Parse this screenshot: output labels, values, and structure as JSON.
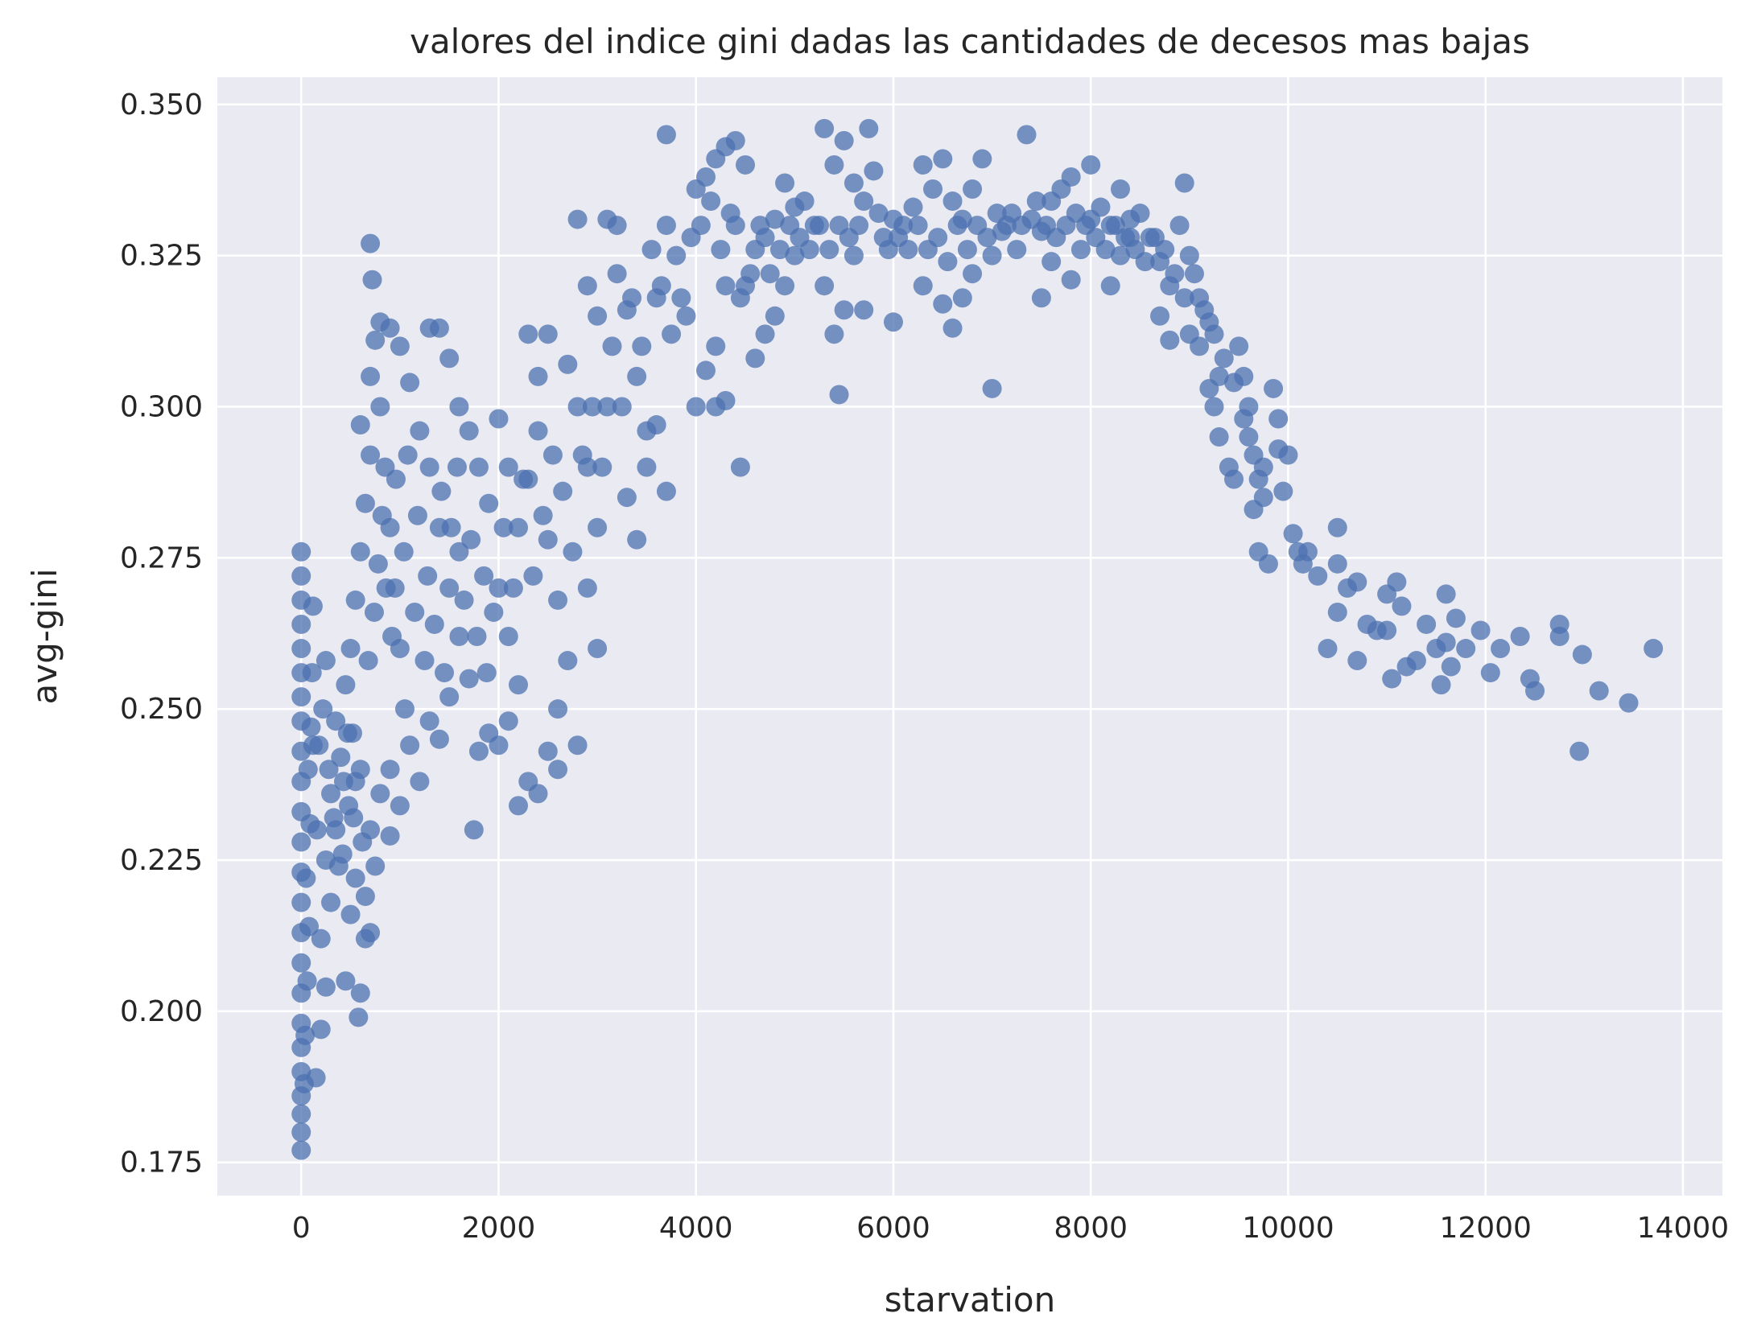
{
  "chart_data": {
    "type": "scatter",
    "title": "valores del indice gini dadas las cantidades de decesos mas bajas",
    "xlabel": "starvation",
    "ylabel": "avg-gini",
    "xlim": [
      -850,
      14400
    ],
    "ylim": [
      0.1695,
      0.3545
    ],
    "xticks": [
      0,
      2000,
      4000,
      6000,
      8000,
      10000,
      12000,
      14000
    ],
    "xtick_labels": [
      "0",
      "2000",
      "4000",
      "6000",
      "8000",
      "10000",
      "12000",
      "14000"
    ],
    "yticks": [
      0.175,
      0.2,
      0.225,
      0.25,
      0.275,
      0.3,
      0.325,
      0.35
    ],
    "ytick_labels": [
      "0.175",
      "0.200",
      "0.225",
      "0.250",
      "0.275",
      "0.300",
      "0.325",
      "0.350"
    ],
    "grid": true,
    "background": "#eaeaf2",
    "point_color": "#4c72b0",
    "points": [
      [
        0,
        0.177
      ],
      [
        0,
        0.18
      ],
      [
        0,
        0.183
      ],
      [
        0,
        0.186
      ],
      [
        0,
        0.19
      ],
      [
        0,
        0.194
      ],
      [
        0,
        0.198
      ],
      [
        0,
        0.203
      ],
      [
        0,
        0.208
      ],
      [
        0,
        0.213
      ],
      [
        0,
        0.218
      ],
      [
        0,
        0.223
      ],
      [
        0,
        0.228
      ],
      [
        0,
        0.233
      ],
      [
        0,
        0.238
      ],
      [
        0,
        0.243
      ],
      [
        0,
        0.248
      ],
      [
        0,
        0.252
      ],
      [
        0,
        0.256
      ],
      [
        0,
        0.26
      ],
      [
        0,
        0.264
      ],
      [
        0,
        0.268
      ],
      [
        0,
        0.272
      ],
      [
        0,
        0.276
      ],
      [
        30,
        0.188
      ],
      [
        40,
        0.196
      ],
      [
        60,
        0.205
      ],
      [
        80,
        0.214
      ],
      [
        50,
        0.222
      ],
      [
        90,
        0.231
      ],
      [
        70,
        0.24
      ],
      [
        100,
        0.247
      ],
      [
        120,
        0.267
      ],
      [
        110,
        0.256
      ],
      [
        150,
        0.189
      ],
      [
        200,
        0.197
      ],
      [
        250,
        0.204
      ],
      [
        200,
        0.212
      ],
      [
        300,
        0.218
      ],
      [
        250,
        0.225
      ],
      [
        350,
        0.23
      ],
      [
        300,
        0.236
      ],
      [
        400,
        0.242
      ],
      [
        350,
        0.248
      ],
      [
        450,
        0.254
      ],
      [
        250,
        0.258
      ],
      [
        180,
        0.244
      ],
      [
        420,
        0.226
      ],
      [
        500,
        0.216
      ],
      [
        550,
        0.222
      ],
      [
        480,
        0.234
      ],
      [
        600,
        0.24
      ],
      [
        520,
        0.246
      ],
      [
        450,
        0.205
      ],
      [
        580,
        0.199
      ],
      [
        600,
        0.203
      ],
      [
        700,
        0.213
      ],
      [
        650,
        0.219
      ],
      [
        750,
        0.224
      ],
      [
        700,
        0.23
      ],
      [
        800,
        0.236
      ],
      [
        650,
        0.212
      ],
      [
        550,
        0.238
      ],
      [
        500,
        0.26
      ],
      [
        550,
        0.268
      ],
      [
        600,
        0.276
      ],
      [
        650,
        0.284
      ],
      [
        700,
        0.292
      ],
      [
        600,
        0.297
      ],
      [
        700,
        0.305
      ],
      [
        750,
        0.311
      ],
      [
        800,
        0.314
      ],
      [
        900,
        0.313
      ],
      [
        700,
        0.327
      ],
      [
        720,
        0.321
      ],
      [
        800,
        0.3
      ],
      [
        850,
        0.29
      ],
      [
        900,
        0.28
      ],
      [
        950,
        0.27
      ],
      [
        1000,
        0.26
      ],
      [
        1050,
        0.25
      ],
      [
        900,
        0.24
      ],
      [
        1000,
        0.234
      ],
      [
        1100,
        0.244
      ],
      [
        1200,
        0.238
      ],
      [
        900,
        0.229
      ],
      [
        1000,
        0.31
      ],
      [
        1100,
        0.304
      ],
      [
        1200,
        0.296
      ],
      [
        1300,
        0.313
      ],
      [
        1400,
        0.313
      ],
      [
        1500,
        0.308
      ],
      [
        1600,
        0.3
      ],
      [
        1300,
        0.29
      ],
      [
        1400,
        0.28
      ],
      [
        1500,
        0.27
      ],
      [
        1600,
        0.262
      ],
      [
        1700,
        0.255
      ],
      [
        1300,
        0.248
      ],
      [
        1400,
        0.245
      ],
      [
        1500,
        0.252
      ],
      [
        1750,
        0.23
      ],
      [
        1800,
        0.243
      ],
      [
        1900,
        0.246
      ],
      [
        1700,
        0.296
      ],
      [
        1800,
        0.29
      ],
      [
        1900,
        0.284
      ],
      [
        1600,
        0.276
      ],
      [
        2000,
        0.298
      ],
      [
        2100,
        0.29
      ],
      [
        2200,
        0.28
      ],
      [
        2000,
        0.27
      ],
      [
        2100,
        0.262
      ],
      [
        2200,
        0.254
      ],
      [
        2300,
        0.312
      ],
      [
        2400,
        0.305
      ],
      [
        2500,
        0.312
      ],
      [
        2400,
        0.296
      ],
      [
        2300,
        0.288
      ],
      [
        2500,
        0.278
      ],
      [
        2600,
        0.268
      ],
      [
        2700,
        0.258
      ],
      [
        2600,
        0.25
      ],
      [
        2200,
        0.234
      ],
      [
        2300,
        0.238
      ],
      [
        2400,
        0.236
      ],
      [
        2500,
        0.243
      ],
      [
        2600,
        0.24
      ],
      [
        2800,
        0.244
      ],
      [
        2000,
        0.244
      ],
      [
        2100,
        0.248
      ],
      [
        2700,
        0.307
      ],
      [
        2800,
        0.331
      ],
      [
        2900,
        0.32
      ],
      [
        3000,
        0.315
      ],
      [
        2800,
        0.3
      ],
      [
        2900,
        0.29
      ],
      [
        3000,
        0.28
      ],
      [
        2900,
        0.27
      ],
      [
        3000,
        0.26
      ],
      [
        3100,
        0.3
      ],
      [
        3200,
        0.322
      ],
      [
        3300,
        0.316
      ],
      [
        3100,
        0.331
      ],
      [
        3200,
        0.33
      ],
      [
        3400,
        0.305
      ],
      [
        3500,
        0.296
      ],
      [
        3600,
        0.297
      ],
      [
        3400,
        0.278
      ],
      [
        3300,
        0.285
      ],
      [
        3500,
        0.29
      ],
      [
        3700,
        0.286
      ],
      [
        3700,
        0.345
      ],
      [
        3700,
        0.33
      ],
      [
        3600,
        0.318
      ],
      [
        3800,
        0.325
      ],
      [
        3900,
        0.315
      ],
      [
        4000,
        0.336
      ],
      [
        4100,
        0.338
      ],
      [
        4200,
        0.341
      ],
      [
        4300,
        0.343
      ],
      [
        4400,
        0.344
      ],
      [
        4500,
        0.34
      ],
      [
        4400,
        0.33
      ],
      [
        4300,
        0.32
      ],
      [
        4200,
        0.31
      ],
      [
        4100,
        0.306
      ],
      [
        4000,
        0.3
      ],
      [
        4300,
        0.301
      ],
      [
        4200,
        0.3
      ],
      [
        4450,
        0.29
      ],
      [
        4500,
        0.32
      ],
      [
        4600,
        0.326
      ],
      [
        4700,
        0.328
      ],
      [
        4800,
        0.331
      ],
      [
        4900,
        0.337
      ],
      [
        5000,
        0.333
      ],
      [
        4800,
        0.315
      ],
      [
        4900,
        0.32
      ],
      [
        5000,
        0.325
      ],
      [
        4700,
        0.312
      ],
      [
        4600,
        0.308
      ],
      [
        5100,
        0.334
      ],
      [
        5200,
        0.33
      ],
      [
        5300,
        0.346
      ],
      [
        5400,
        0.34
      ],
      [
        5500,
        0.344
      ],
      [
        5600,
        0.337
      ],
      [
        5700,
        0.334
      ],
      [
        5750,
        0.346
      ],
      [
        5800,
        0.339
      ],
      [
        5600,
        0.325
      ],
      [
        5500,
        0.316
      ],
      [
        5400,
        0.312
      ],
      [
        5300,
        0.32
      ],
      [
        5450,
        0.302
      ],
      [
        5700,
        0.316
      ],
      [
        5900,
        0.328
      ],
      [
        6000,
        0.331
      ],
      [
        6000,
        0.314
      ],
      [
        6100,
        0.33
      ],
      [
        6200,
        0.333
      ],
      [
        6300,
        0.34
      ],
      [
        6400,
        0.336
      ],
      [
        6500,
        0.341
      ],
      [
        6600,
        0.334
      ],
      [
        6700,
        0.331
      ],
      [
        6800,
        0.336
      ],
      [
        6900,
        0.341
      ],
      [
        6300,
        0.32
      ],
      [
        6500,
        0.317
      ],
      [
        6700,
        0.318
      ],
      [
        6600,
        0.313
      ],
      [
        6800,
        0.322
      ],
      [
        7000,
        0.303
      ],
      [
        7000,
        0.325
      ],
      [
        7100,
        0.329
      ],
      [
        7200,
        0.332
      ],
      [
        7300,
        0.33
      ],
      [
        7350,
        0.345
      ],
      [
        7400,
        0.331
      ],
      [
        7500,
        0.329
      ],
      [
        7600,
        0.334
      ],
      [
        7700,
        0.336
      ],
      [
        7800,
        0.338
      ],
      [
        7500,
        0.318
      ],
      [
        7600,
        0.324
      ],
      [
        7800,
        0.321
      ],
      [
        7900,
        0.326
      ],
      [
        8000,
        0.331
      ],
      [
        8000,
        0.34
      ],
      [
        8100,
        0.333
      ],
      [
        8200,
        0.33
      ],
      [
        8300,
        0.336
      ],
      [
        8400,
        0.331
      ],
      [
        8200,
        0.32
      ],
      [
        8300,
        0.325
      ],
      [
        8400,
        0.328
      ],
      [
        8500,
        0.332
      ],
      [
        8600,
        0.328
      ],
      [
        8700,
        0.324
      ],
      [
        8800,
        0.32
      ],
      [
        8900,
        0.33
      ],
      [
        8950,
        0.337
      ],
      [
        9000,
        0.325
      ],
      [
        9100,
        0.318
      ],
      [
        8800,
        0.311
      ],
      [
        8700,
        0.315
      ],
      [
        9000,
        0.312
      ],
      [
        9100,
        0.31
      ],
      [
        9200,
        0.314
      ],
      [
        9300,
        0.305
      ],
      [
        9200,
        0.303
      ],
      [
        9250,
        0.3
      ],
      [
        9300,
        0.295
      ],
      [
        9400,
        0.29
      ],
      [
        9450,
        0.288
      ],
      [
        9500,
        0.31
      ],
      [
        9550,
        0.305
      ],
      [
        9600,
        0.3
      ],
      [
        9600,
        0.295
      ],
      [
        9700,
        0.288
      ],
      [
        9750,
        0.285
      ],
      [
        9650,
        0.283
      ],
      [
        9700,
        0.276
      ],
      [
        9800,
        0.274
      ],
      [
        9850,
        0.303
      ],
      [
        9900,
        0.298
      ],
      [
        9900,
        0.293
      ],
      [
        10000,
        0.292
      ],
      [
        9950,
        0.286
      ],
      [
        10050,
        0.279
      ],
      [
        10100,
        0.276
      ],
      [
        10150,
        0.274
      ],
      [
        10200,
        0.276
      ],
      [
        10300,
        0.272
      ],
      [
        10400,
        0.26
      ],
      [
        10500,
        0.266
      ],
      [
        10500,
        0.274
      ],
      [
        10500,
        0.28
      ],
      [
        10600,
        0.27
      ],
      [
        10700,
        0.258
      ],
      [
        10700,
        0.271
      ],
      [
        10800,
        0.264
      ],
      [
        10900,
        0.263
      ],
      [
        11000,
        0.263
      ],
      [
        11000,
        0.269
      ],
      [
        11050,
        0.255
      ],
      [
        11100,
        0.271
      ],
      [
        11150,
        0.267
      ],
      [
        11200,
        0.257
      ],
      [
        11300,
        0.258
      ],
      [
        11400,
        0.264
      ],
      [
        11500,
        0.26
      ],
      [
        11550,
        0.254
      ],
      [
        11600,
        0.269
      ],
      [
        11600,
        0.261
      ],
      [
        11650,
        0.257
      ],
      [
        11700,
        0.265
      ],
      [
        11800,
        0.26
      ],
      [
        11950,
        0.263
      ],
      [
        12050,
        0.256
      ],
      [
        12150,
        0.26
      ],
      [
        12350,
        0.262
      ],
      [
        12450,
        0.255
      ],
      [
        12500,
        0.253
      ],
      [
        12750,
        0.264
      ],
      [
        12750,
        0.262
      ],
      [
        12950,
        0.243
      ],
      [
        12980,
        0.259
      ],
      [
        13150,
        0.253
      ],
      [
        13450,
        0.251
      ],
      [
        13700,
        0.26
      ],
      [
        120,
        0.244
      ],
      [
        160,
        0.23
      ],
      [
        220,
        0.25
      ],
      [
        280,
        0.24
      ],
      [
        330,
        0.232
      ],
      [
        380,
        0.224
      ],
      [
        430,
        0.238
      ],
      [
        470,
        0.246
      ],
      [
        530,
        0.232
      ],
      [
        620,
        0.228
      ],
      [
        680,
        0.258
      ],
      [
        740,
        0.266
      ],
      [
        780,
        0.274
      ],
      [
        820,
        0.282
      ],
      [
        860,
        0.27
      ],
      [
        920,
        0.262
      ],
      [
        960,
        0.288
      ],
      [
        1040,
        0.276
      ],
      [
        1080,
        0.292
      ],
      [
        1150,
        0.266
      ],
      [
        1180,
        0.282
      ],
      [
        1250,
        0.258
      ],
      [
        1280,
        0.272
      ],
      [
        1350,
        0.264
      ],
      [
        1420,
        0.286
      ],
      [
        1450,
        0.256
      ],
      [
        1520,
        0.28
      ],
      [
        1580,
        0.29
      ],
      [
        1650,
        0.268
      ],
      [
        1720,
        0.278
      ],
      [
        1780,
        0.262
      ],
      [
        1850,
        0.272
      ],
      [
        1880,
        0.256
      ],
      [
        1950,
        0.266
      ],
      [
        2050,
        0.28
      ],
      [
        2150,
        0.27
      ],
      [
        2250,
        0.288
      ],
      [
        2350,
        0.272
      ],
      [
        2450,
        0.282
      ],
      [
        2550,
        0.292
      ],
      [
        2650,
        0.286
      ],
      [
        2750,
        0.276
      ],
      [
        2850,
        0.292
      ],
      [
        2950,
        0.3
      ],
      [
        3050,
        0.29
      ],
      [
        3150,
        0.31
      ],
      [
        3250,
        0.3
      ],
      [
        3350,
        0.318
      ],
      [
        3450,
        0.31
      ],
      [
        3550,
        0.326
      ],
      [
        3650,
        0.32
      ],
      [
        3750,
        0.312
      ],
      [
        3850,
        0.318
      ],
      [
        3950,
        0.328
      ],
      [
        4050,
        0.33
      ],
      [
        4150,
        0.334
      ],
      [
        4250,
        0.326
      ],
      [
        4350,
        0.332
      ],
      [
        4450,
        0.318
      ],
      [
        4550,
        0.322
      ],
      [
        4650,
        0.33
      ],
      [
        4750,
        0.322
      ],
      [
        4850,
        0.326
      ],
      [
        4950,
        0.33
      ],
      [
        5050,
        0.328
      ],
      [
        5150,
        0.326
      ],
      [
        5250,
        0.33
      ],
      [
        5350,
        0.326
      ],
      [
        5450,
        0.33
      ],
      [
        5550,
        0.328
      ],
      [
        5650,
        0.33
      ],
      [
        5850,
        0.332
      ],
      [
        5950,
        0.326
      ],
      [
        6050,
        0.328
      ],
      [
        6150,
        0.326
      ],
      [
        6250,
        0.33
      ],
      [
        6350,
        0.326
      ],
      [
        6450,
        0.328
      ],
      [
        6550,
        0.324
      ],
      [
        6650,
        0.33
      ],
      [
        6750,
        0.326
      ],
      [
        6850,
        0.33
      ],
      [
        6950,
        0.328
      ],
      [
        7050,
        0.332
      ],
      [
        7150,
        0.33
      ],
      [
        7250,
        0.326
      ],
      [
        7450,
        0.334
      ],
      [
        7550,
        0.33
      ],
      [
        7650,
        0.328
      ],
      [
        7750,
        0.33
      ],
      [
        7850,
        0.332
      ],
      [
        7950,
        0.33
      ],
      [
        8050,
        0.328
      ],
      [
        8150,
        0.326
      ],
      [
        8250,
        0.33
      ],
      [
        8350,
        0.328
      ],
      [
        8450,
        0.326
      ],
      [
        8550,
        0.324
      ],
      [
        8650,
        0.328
      ],
      [
        8750,
        0.326
      ],
      [
        8850,
        0.322
      ],
      [
        8950,
        0.318
      ],
      [
        9050,
        0.322
      ],
      [
        9150,
        0.316
      ],
      [
        9250,
        0.312
      ],
      [
        9350,
        0.308
      ],
      [
        9450,
        0.304
      ],
      [
        9550,
        0.298
      ],
      [
        9650,
        0.292
      ],
      [
        9750,
        0.29
      ]
    ]
  }
}
